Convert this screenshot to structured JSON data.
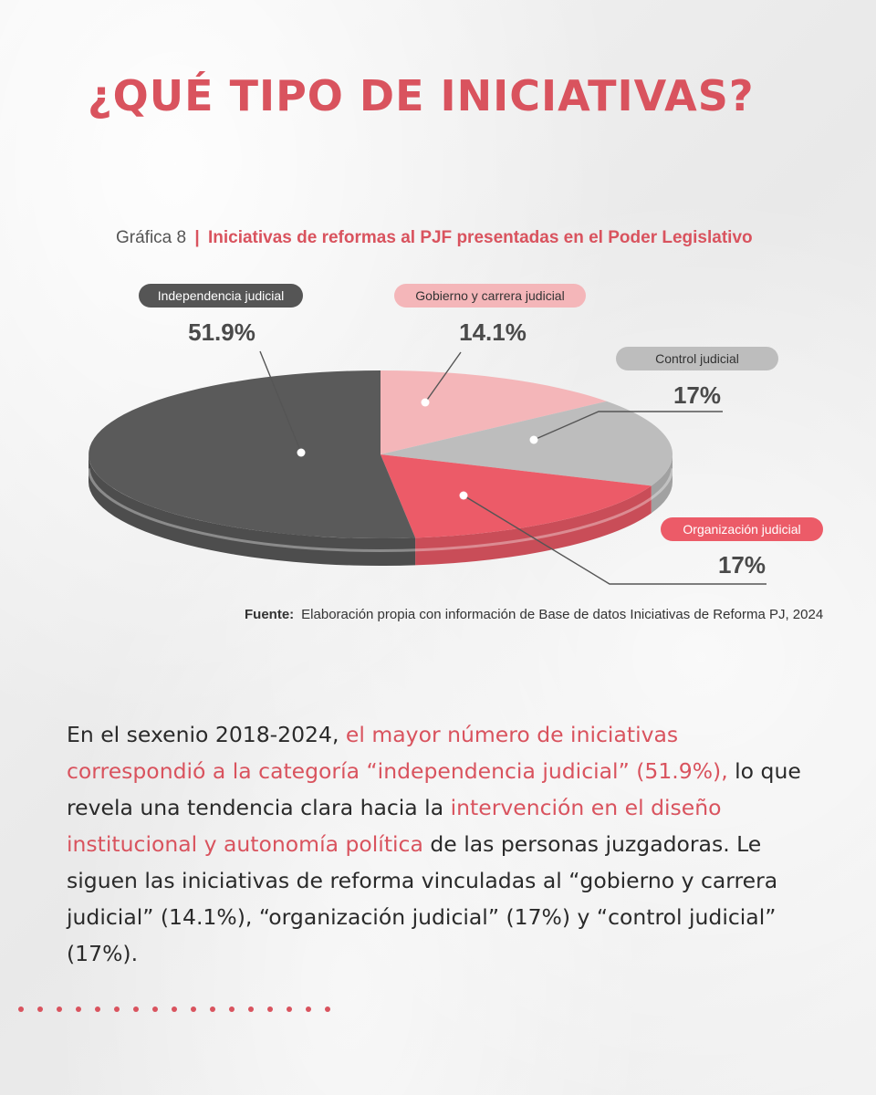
{
  "page": {
    "title": "¿QUÉ TIPO DE INICIATIVAS?",
    "accent_color": "#d9535e"
  },
  "chart_heading": {
    "number": "Gráfica 8",
    "separator": "|",
    "title": "Iniciativas de reformas al PJF presentadas en el Poder Legislativo"
  },
  "chart_data": {
    "type": "pie",
    "title": "Iniciativas de reformas al PJF presentadas en el Poder Legislativo",
    "slices": [
      {
        "label": "Independencia judicial",
        "value": 51.9,
        "value_label": "51.9%",
        "color": "#5a5a5a"
      },
      {
        "label": "Gobierno y carrera judicial",
        "value": 14.1,
        "value_label": "14.1%",
        "color": "#f4b6b9"
      },
      {
        "label": "Control judicial",
        "value": 17,
        "value_label": "17%",
        "color": "#bdbdbd"
      },
      {
        "label": "Organización judicial",
        "value": 17,
        "value_label": "17%",
        "color": "#ec5b68"
      }
    ]
  },
  "source": {
    "label": "Fuente:",
    "text": "Elaboración propia con información de Base de datos Iniciativas de Reforma PJ, 2024"
  },
  "body": {
    "part1": "En el sexenio 2018-2024, ",
    "part2": "el mayor número de iniciativas correspondió a la categoría “independencia judicial” (51.9%),",
    "part3": " lo que revela una tendencia clara hacia la ",
    "part4": "intervención en el diseño institucional y autonomía política",
    "part5": " de las personas juzgadoras. Le siguen las iniciativas de reforma vinculadas al “gobierno y carrera judicial” (14.1%), “organización judicial” (17%) y “control judicial” (17%)."
  }
}
